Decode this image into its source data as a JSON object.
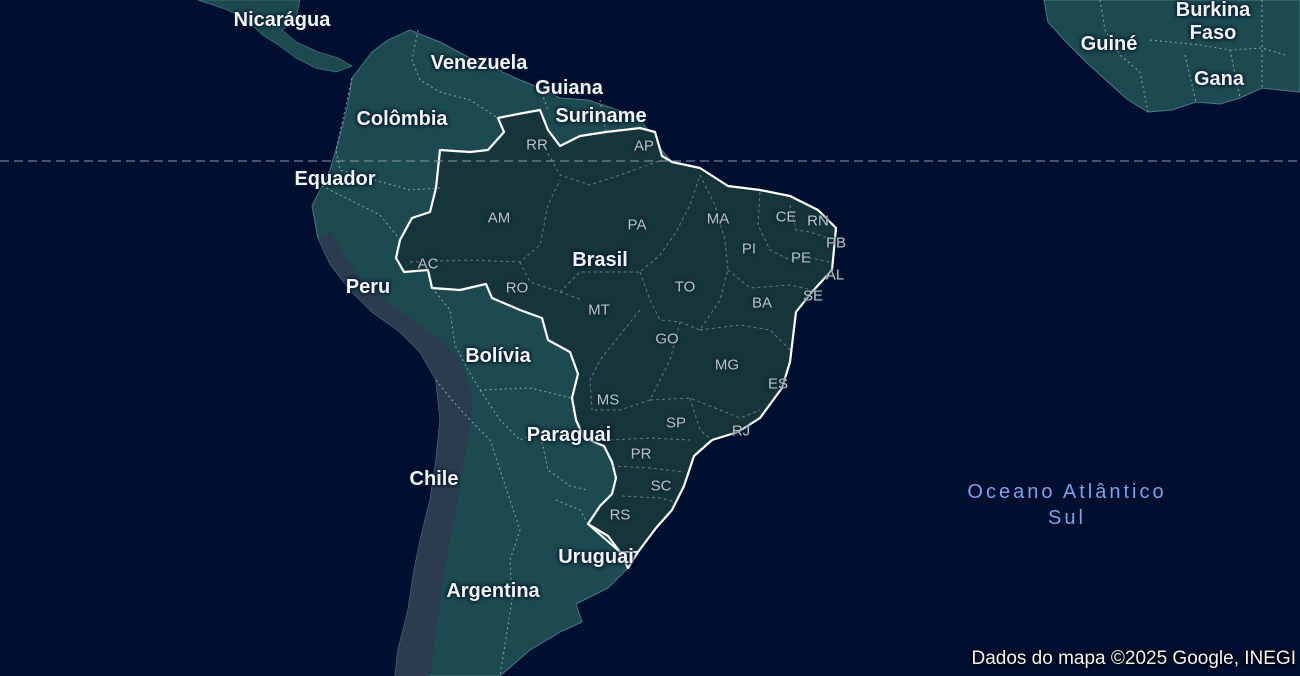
{
  "map": {
    "colors": {
      "ocean": "#000e30",
      "land": "#1c4a50",
      "brazil": "#15353a",
      "andes": "#2d3a4e",
      "border": "#ffffff",
      "equator": "#8a9bb0"
    },
    "equator_line": true,
    "countries": {
      "nicaragua": "Nicarágua",
      "venezuela": "Venezuela",
      "guyana": "Guiana",
      "suriname": "Suriname",
      "colombia": "Colômbia",
      "ecuador": "Equador",
      "brazil": "Brasil",
      "peru": "Peru",
      "bolivia": "Bolívia",
      "paraguay": "Paraguai",
      "chile": "Chile",
      "uruguay": "Uruguai",
      "argentina": "Argentina",
      "guinea": "Guiné",
      "burkina_faso": "Burkina Faso",
      "ghana": "Gana"
    },
    "states": {
      "rr": "RR",
      "ap": "AP",
      "am": "AM",
      "pa": "PA",
      "ma": "MA",
      "ce": "CE",
      "rn": "RN",
      "pb": "PB",
      "pi": "PI",
      "pe": "PE",
      "al": "AL",
      "ac": "AC",
      "ro": "RO",
      "to": "TO",
      "se": "SE",
      "ba": "BA",
      "mt": "MT",
      "go": "GO",
      "mg": "MG",
      "es": "ES",
      "ms": "MS",
      "sp": "SP",
      "rj": "RJ",
      "pr": "PR",
      "sc": "SC",
      "rs": "RS"
    },
    "ocean_label": "Oceano Atlântico Sul",
    "attribution": "Dados do mapa ©2025 Google, INEGI"
  }
}
